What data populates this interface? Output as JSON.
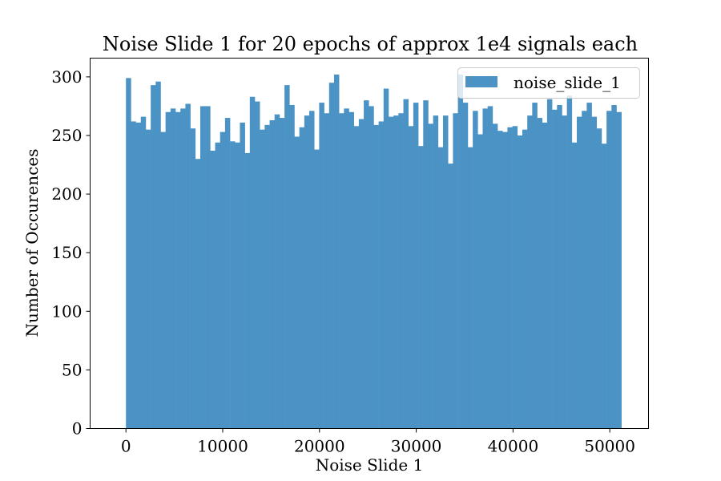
{
  "chart_data": {
    "type": "bar",
    "title": "Noise Slide 1 for 20 epochs of approx 1e4 signals each",
    "xlabel": "Noise Slide 1",
    "ylabel": "Number of Occurences",
    "xlim": [
      -3700,
      54000
    ],
    "ylim": [
      0,
      316
    ],
    "bin_start": 0,
    "bin_width": 512,
    "xticks": [
      0,
      10000,
      20000,
      30000,
      40000,
      50000
    ],
    "yticks": [
      0,
      50,
      100,
      150,
      200,
      250,
      300
    ],
    "legend": {
      "label": "noise_slide_1",
      "position": "top-right"
    },
    "color": "#4c93c5",
    "series": [
      {
        "name": "noise_slide_1",
        "values": [
          299,
          262,
          261,
          266,
          255,
          293,
          296,
          253,
          270,
          273,
          270,
          273,
          277,
          256,
          230,
          275,
          275,
          237,
          244,
          253,
          265,
          245,
          244,
          261,
          235,
          283,
          279,
          255,
          259,
          263,
          268,
          265,
          293,
          276,
          249,
          257,
          267,
          271,
          238,
          278,
          269,
          295,
          302,
          269,
          273,
          270,
          258,
          264,
          280,
          275,
          259,
          262,
          290,
          266,
          267,
          269,
          281,
          258,
          278,
          241,
          280,
          260,
          267,
          240,
          267,
          226,
          269,
          302,
          278,
          240,
          271,
          251,
          273,
          275,
          260,
          254,
          253,
          257,
          258,
          250,
          255,
          267,
          278,
          265,
          261,
          281,
          272,
          276,
          267,
          284,
          244,
          266,
          271,
          278,
          266,
          256,
          243,
          271,
          276,
          270
        ]
      }
    ]
  }
}
